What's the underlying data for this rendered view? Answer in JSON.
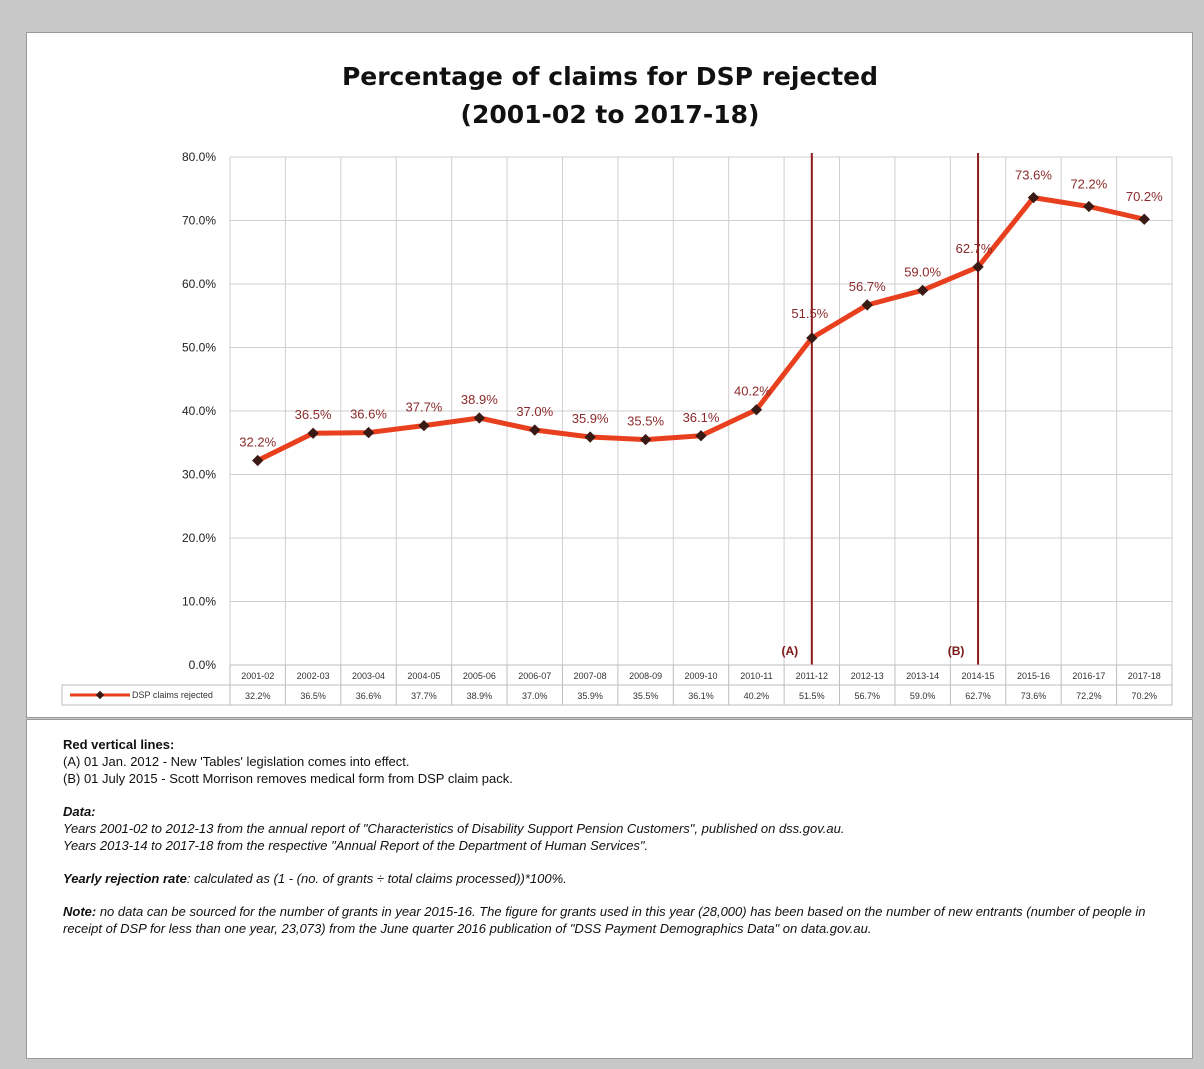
{
  "chart_data": {
    "type": "line",
    "title": "Percentage of claims for DSP rejected",
    "subtitle": "(2001-02 to 2017-18)",
    "categories": [
      "2001-02",
      "2002-03",
      "2003-04",
      "2004-05",
      "2005-06",
      "2006-07",
      "2007-08",
      "2008-09",
      "2009-10",
      "2010-11",
      "2011-12",
      "2012-13",
      "2013-14",
      "2014-15",
      "2015-16",
      "2016-17",
      "2017-18"
    ],
    "series": [
      {
        "name": "DSP claims rejected",
        "values": [
          32.2,
          36.5,
          36.6,
          37.7,
          38.9,
          37.0,
          35.9,
          35.5,
          36.1,
          40.2,
          51.5,
          56.7,
          59.0,
          62.7,
          73.6,
          72.2,
          70.2
        ],
        "labels": [
          "32.2%",
          "36.5%",
          "36.6%",
          "37.7%",
          "38.9%",
          "37.0%",
          "35.9%",
          "35.5%",
          "36.1%",
          "40.2%",
          "51.5%",
          "56.7%",
          "59.0%",
          "62.7%",
          "73.6%",
          "72.2%",
          "70.2%"
        ],
        "table_labels": [
          "32.2%",
          "36.5%",
          "36.6%",
          "37.7%",
          "38.9%",
          "37.0%",
          "35.9%",
          "35.5%",
          "36.1%",
          "40.2%",
          "51.5%",
          "56.7%",
          "59.0%",
          "62.7%",
          "73.6%",
          "72.2%",
          "70.2%"
        ],
        "color": "#e8401e",
        "marker_color": "#3a1a14"
      }
    ],
    "ylim": [
      0,
      80
    ],
    "yticks": [
      0,
      10,
      20,
      30,
      40,
      50,
      60,
      70,
      80
    ],
    "ytick_labels": [
      "0.0%",
      "10.0%",
      "20.0%",
      "30.0%",
      "40.0%",
      "50.0%",
      "60.0%",
      "70.0%",
      "80.0%"
    ],
    "grid": true,
    "vlines": [
      {
        "label": "(A)",
        "x": 10.5,
        "color": "#8b1a1a"
      },
      {
        "label": "(B)",
        "x": 13.5,
        "color": "#8b1a1a"
      }
    ]
  },
  "notes": {
    "red_lines_heading": "Red vertical lines:",
    "red_line_a": "(A) 01 Jan. 2012 - New 'Tables' legislation comes into effect.",
    "red_line_b": "(B) 01 July 2015 - Scott Morrison removes medical form from DSP claim pack.",
    "data_heading": "Data:",
    "data_line_1": "Years 2001-02 to 2012-13 from the annual report of \"Characteristics of Disability Support Pension Customers\", published on dss.gov.au.",
    "data_line_2": "Years 2013-14 to 2017-18 from the respective \"Annual Report of the Department of Human Services\".",
    "rate_heading": "Yearly rejection rate",
    "rate_text": ": calculated as (1 - (no. of grants ÷ total claims processed))*100%.",
    "note_heading": "Note:",
    "note_text": " no data can be sourced for the number of grants in year 2015-16. The figure for grants used in this year (28,000) has been based on the number of new entrants (number of people in receipt of DSP for less than one year, 23,073) from the June quarter 2016 publication of \"DSS Payment Demographics Data\" on data.gov.au."
  }
}
